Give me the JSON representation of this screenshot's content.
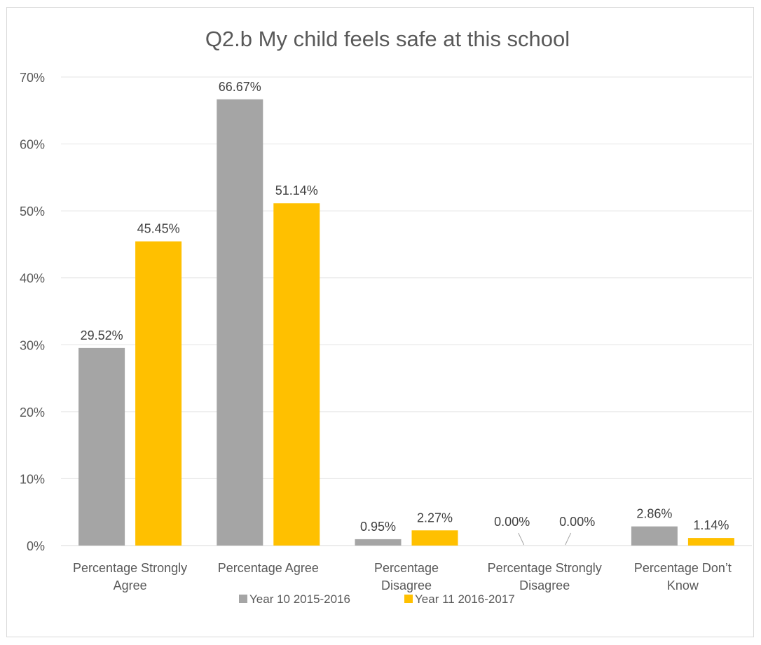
{
  "chart_data": {
    "type": "bar",
    "title": "Q2.b My child feels safe at this school",
    "xlabel": "",
    "ylabel": "",
    "ylim": [
      0,
      70
    ],
    "yticks": [
      "0%",
      "10%",
      "20%",
      "30%",
      "40%",
      "50%",
      "60%",
      "70%"
    ],
    "yticks_values": [
      0,
      10,
      20,
      30,
      40,
      50,
      60,
      70
    ],
    "grid": true,
    "legend_position": "bottom",
    "categories": [
      [
        "Percentage Strongly",
        "Agree"
      ],
      [
        "Percentage Agree"
      ],
      [
        "Percentage",
        "Disagree"
      ],
      [
        "Percentage Strongly",
        "Disagree"
      ],
      [
        "Percentage Don’t",
        "Know"
      ]
    ],
    "series": [
      {
        "name": "Year 10 2015-2016",
        "color": "#a5a5a5",
        "values": [
          29.52,
          66.67,
          0.95,
          0.0,
          2.86
        ],
        "labels": [
          "29.52%",
          "66.67%",
          "0.95%",
          "0.00%",
          "2.86%"
        ]
      },
      {
        "name": "Year 11 2016-2017",
        "color": "#ffc000",
        "values": [
          45.45,
          51.14,
          2.27,
          0.0,
          1.14
        ],
        "labels": [
          "45.45%",
          "51.14%",
          "2.27%",
          "0.00%",
          "1.14%"
        ]
      }
    ]
  }
}
